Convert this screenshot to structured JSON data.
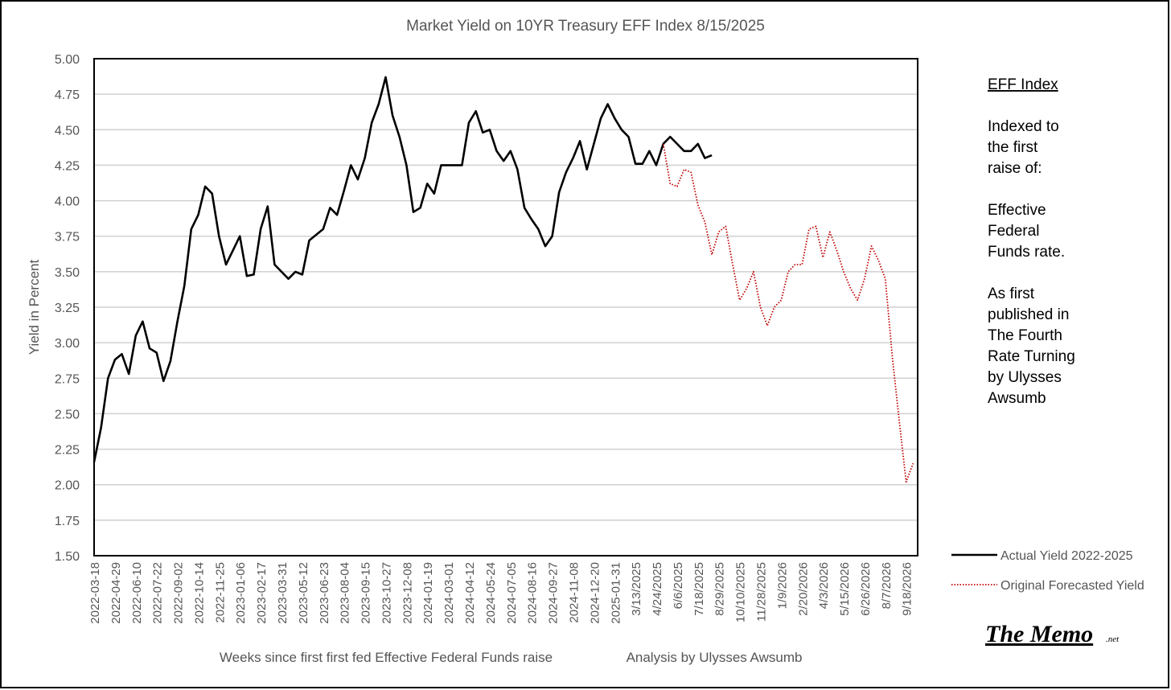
{
  "chart_data": {
    "type": "line",
    "title": "Market Yield on 10YR Treasury EFF Index 8/15/2025",
    "ylabel": "Yield in Percent",
    "xlabel": "Weeks since first first fed Effective Federal Funds raise",
    "credit": "Analysis by Ulysses Awsumb",
    "side_text": [
      "EFF Index",
      "Indexed to",
      "the first",
      "raise of:",
      "Effective",
      "Federal",
      "Funds rate.",
      "As first",
      "published in",
      "The Fourth",
      "Rate Turning",
      "by Ulysses",
      "Awsumb"
    ],
    "logo": "The Memo",
    "logo_suffix": ".net",
    "categories": [
      "2022-03-18",
      null,
      null,
      "2022-04-29",
      null,
      null,
      "2022-06-10",
      null,
      null,
      "2022-07-22",
      null,
      null,
      "2022-09-02",
      null,
      null,
      "2022-10-14",
      null,
      null,
      "2022-11-25",
      null,
      null,
      "2023-01-06",
      null,
      null,
      "2023-02-17",
      null,
      null,
      "2023-03-31",
      null,
      null,
      "2023-05-12",
      null,
      null,
      "2023-06-23",
      null,
      null,
      "2023-08-04",
      null,
      null,
      "2023-09-15",
      null,
      null,
      "2023-10-27",
      null,
      null,
      "2023-12-08",
      null,
      null,
      "2024-01-19",
      null,
      null,
      "2024-03-01",
      null,
      null,
      "2024-04-12",
      null,
      null,
      "2024-05-24",
      null,
      null,
      "2024-07-05",
      null,
      null,
      "2024-08-16",
      null,
      null,
      "2024-09-27",
      null,
      null,
      "2024-11-08",
      null,
      null,
      "2024-12-20",
      null,
      null,
      "2025-01-31",
      null,
      null,
      "3/13/2025",
      null,
      null,
      "4/24/2025",
      null,
      null,
      "6/6/2025",
      null,
      null,
      "7/18/2025",
      null,
      null,
      "8/29/2025",
      null,
      null,
      "10/10/2025",
      null,
      null,
      "11/28/2025",
      null,
      null,
      "1/9/2026",
      null,
      null,
      "2/20/2026",
      null,
      null,
      "4/3/2026",
      null,
      null,
      "5/15/2026",
      null,
      null,
      "6/26/2026",
      null,
      null,
      "8/7/2026",
      null,
      null,
      "9/18/2026",
      null
    ],
    "series": [
      {
        "name": "Actual Yield 2022-2025",
        "color": "#000000",
        "style": "solid",
        "values": [
          2.16,
          2.4,
          2.75,
          2.88,
          2.92,
          2.78,
          3.05,
          3.15,
          2.96,
          2.93,
          2.73,
          2.87,
          3.15,
          3.4,
          3.8,
          3.9,
          4.1,
          4.05,
          3.75,
          3.55,
          3.65,
          3.75,
          3.47,
          3.48,
          3.8,
          3.96,
          3.55,
          3.5,
          3.45,
          3.5,
          3.48,
          3.72,
          3.76,
          3.8,
          3.95,
          3.9,
          4.07,
          4.25,
          4.15,
          4.3,
          4.55,
          4.68,
          4.87,
          4.6,
          4.45,
          4.25,
          3.92,
          3.95,
          4.12,
          4.05,
          4.25,
          4.25,
          4.25,
          4.25,
          4.55,
          4.63,
          4.48,
          4.5,
          4.35,
          4.28,
          4.35,
          4.22,
          3.95,
          3.87,
          3.8,
          3.68,
          3.75,
          4.06,
          4.2,
          4.3,
          4.42,
          4.22,
          4.4,
          4.58,
          4.68,
          4.58,
          4.5,
          4.45,
          4.26,
          4.26,
          4.35,
          4.25,
          4.4,
          4.45,
          4.4,
          4.35,
          4.35,
          4.4,
          4.3,
          4.32,
          null,
          null,
          null,
          null,
          null,
          null,
          null,
          null,
          null,
          null,
          null,
          null,
          null,
          null,
          null,
          null,
          null,
          null,
          null,
          null,
          null,
          null,
          null,
          null,
          null,
          null,
          null,
          null,
          null
        ]
      },
      {
        "name": "Original Forecasted Yield",
        "color": "#c00000",
        "style": "dotted",
        "values": [
          null,
          null,
          null,
          null,
          null,
          null,
          null,
          null,
          null,
          null,
          null,
          null,
          null,
          null,
          null,
          null,
          null,
          null,
          null,
          null,
          null,
          null,
          null,
          null,
          null,
          null,
          null,
          null,
          null,
          null,
          null,
          null,
          null,
          null,
          null,
          null,
          null,
          null,
          null,
          null,
          null,
          null,
          null,
          null,
          null,
          null,
          null,
          null,
          null,
          null,
          null,
          null,
          null,
          null,
          null,
          null,
          null,
          null,
          null,
          null,
          null,
          null,
          null,
          null,
          null,
          null,
          null,
          null,
          null,
          null,
          null,
          null,
          null,
          null,
          null,
          null,
          null,
          null,
          null,
          null,
          null,
          null,
          4.4,
          4.12,
          4.1,
          4.22,
          4.2,
          3.97,
          3.85,
          3.62,
          3.78,
          3.82,
          3.55,
          3.3,
          3.38,
          3.5,
          3.25,
          3.12,
          3.25,
          3.3,
          3.5,
          3.55,
          3.55,
          3.8,
          3.82,
          3.6,
          3.78,
          3.65,
          3.5,
          3.38,
          3.3,
          3.45,
          3.68,
          3.58,
          3.45,
          2.9,
          2.45,
          2.02,
          2.15
        ]
      }
    ],
    "ylim": [
      1.5,
      5
    ],
    "yticks": [
      {
        "value": 1.5,
        "label": "1.50"
      },
      {
        "value": 1.75,
        "label": "1.75"
      },
      {
        "value": 2,
        "label": "2.00"
      },
      {
        "value": 2.25,
        "label": "2.25"
      },
      {
        "value": 2.5,
        "label": "2.50"
      },
      {
        "value": 2.75,
        "label": "2.75"
      },
      {
        "value": 3,
        "label": "3.00"
      },
      {
        "value": 3.25,
        "label": "3.25"
      },
      {
        "value": 3.5,
        "label": "3.50"
      },
      {
        "value": 3.75,
        "label": "3.75"
      },
      {
        "value": 4,
        "label": "4.00"
      },
      {
        "value": 4.25,
        "label": "4.25"
      },
      {
        "value": 4.5,
        "label": "4.50"
      },
      {
        "value": 4.75,
        "label": "4.75"
      },
      {
        "value": 5,
        "label": "5.00"
      }
    ],
    "grid": true
  }
}
